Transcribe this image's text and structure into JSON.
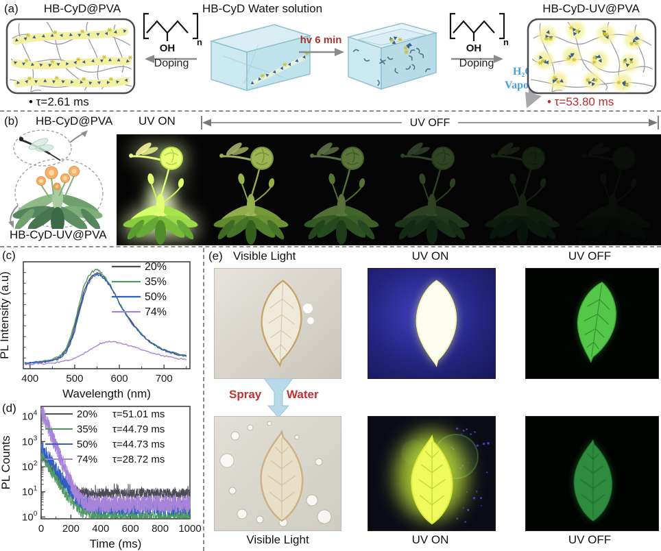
{
  "panel_a": {
    "label": "(a)",
    "film1_title": "HB-CyD@PVA",
    "film1_tau": "• τ=2.61 ms",
    "pva_oh": "OH",
    "pva_n": "n",
    "doping_left": "Doping",
    "solution_title": "HB-CyD Water solution",
    "hv_label": "hv 6 min",
    "doping_right": "Doping",
    "h2o": "H₂O",
    "vapor": "Vapor",
    "film2_title": "HB-CyD-UV@PVA",
    "film2_tau": "• τ=53.80 ms"
  },
  "panel_b": {
    "label": "(b)",
    "top_label": "HB-CyD@PVA",
    "uv_on": "UV ON",
    "uv_off": "UV OFF",
    "bottom_label": "HB-CyD-UV@PVA"
  },
  "panel_c": {
    "label": "(c)"
  },
  "panel_d": {
    "label": "(d)"
  },
  "panel_e": {
    "label": "(e)",
    "top_titles": [
      "Visible Light",
      "UV ON",
      "UV OFF"
    ],
    "spray": "Spray",
    "water": "Water",
    "bottom_labels": [
      "Visible Light",
      "UV ON",
      "UV OFF"
    ]
  },
  "colors": {
    "tau_red": "#bf2a28",
    "hv_red": "#a5342f",
    "h2o_blue": "#4aa0dd",
    "water_box_blue": "#bfe2ec",
    "glow_yellow": "#f5f1a2",
    "uv_background_blue": "#22227a",
    "series_gray": "#4b4b55",
    "series_green": "#4f9a62",
    "series_blue": "#2f5fc6",
    "series_purple": "#a884d8"
  },
  "chart_data": [
    {
      "id": "pl-spectrum",
      "type": "line",
      "title": "",
      "xlabel": "Wavelength (nm)",
      "ylabel": "PL Intensity (a.u)",
      "xlim": [
        385,
        758
      ],
      "ylim": [
        0,
        1.08
      ],
      "xticks": [
        400,
        500,
        600,
        700
      ],
      "xticks_minor": [
        450,
        550,
        650,
        750
      ],
      "grid": false,
      "legend_position": "top-right",
      "x": [
        388,
        400,
        415,
        430,
        445,
        460,
        470,
        480,
        490,
        500,
        510,
        520,
        530,
        540,
        548,
        555,
        562,
        570,
        580,
        590,
        600,
        615,
        630,
        645,
        660,
        675,
        690,
        705,
        720,
        735,
        750
      ],
      "series": [
        {
          "name": "20%",
          "color": "#4b4b55",
          "noise": 0.01,
          "y": [
            0.055,
            0.06,
            0.065,
            0.07,
            0.08,
            0.1,
            0.13,
            0.18,
            0.28,
            0.42,
            0.6,
            0.77,
            0.88,
            0.94,
            0.96,
            0.96,
            0.94,
            0.9,
            0.83,
            0.75,
            0.66,
            0.55,
            0.45,
            0.37,
            0.3,
            0.25,
            0.21,
            0.18,
            0.16,
            0.14,
            0.13
          ]
        },
        {
          "name": "35%",
          "color": "#4f9a62",
          "noise": 0.01,
          "y": [
            0.055,
            0.06,
            0.065,
            0.075,
            0.085,
            0.11,
            0.14,
            0.2,
            0.31,
            0.46,
            0.65,
            0.82,
            0.93,
            0.98,
            1.0,
            0.99,
            0.96,
            0.91,
            0.84,
            0.75,
            0.66,
            0.55,
            0.45,
            0.37,
            0.3,
            0.25,
            0.21,
            0.18,
            0.16,
            0.14,
            0.13
          ]
        },
        {
          "name": "50%",
          "color": "#2f5fc6",
          "noise": 0.01,
          "y": [
            0.055,
            0.06,
            0.065,
            0.07,
            0.078,
            0.095,
            0.12,
            0.16,
            0.25,
            0.38,
            0.56,
            0.73,
            0.86,
            0.93,
            0.95,
            0.95,
            0.93,
            0.89,
            0.83,
            0.75,
            0.66,
            0.55,
            0.45,
            0.37,
            0.3,
            0.25,
            0.21,
            0.18,
            0.16,
            0.14,
            0.13
          ]
        },
        {
          "name": "74%",
          "color": "#a884d8",
          "noise": 0.007,
          "y": [
            0.045,
            0.047,
            0.05,
            0.052,
            0.055,
            0.06,
            0.068,
            0.078,
            0.09,
            0.105,
            0.125,
            0.15,
            0.18,
            0.21,
            0.23,
            0.25,
            0.26,
            0.27,
            0.275,
            0.27,
            0.26,
            0.245,
            0.225,
            0.2,
            0.18,
            0.16,
            0.14,
            0.125,
            0.11,
            0.1,
            0.095
          ]
        }
      ]
    },
    {
      "id": "pl-decay",
      "type": "line-log",
      "title": "",
      "xlabel": "Time (ms)",
      "ylabel": "PL Counts",
      "xlim": [
        0,
        1000
      ],
      "ylim": [
        0.85,
        25000
      ],
      "xticks": [
        0,
        200,
        400,
        600,
        800,
        1000
      ],
      "xticks_minor": [
        100,
        300,
        500,
        700,
        900
      ],
      "yticks_pow": [
        0,
        1,
        2,
        3,
        4
      ],
      "grid": false,
      "legend_position": "top-inside",
      "series": [
        {
          "name": "20%",
          "tau_label": "τ=51.01 ms",
          "tau_ms": 51.01,
          "color": "#4b4b55",
          "peak": 290,
          "floor": 8.5,
          "noise": 0.42,
          "samples": 850,
          "spikes": true
        },
        {
          "name": "35%",
          "tau_label": "τ=44.79 ms",
          "tau_ms": 44.79,
          "color": "#4f9a62",
          "peak": 330,
          "floor": 1.05,
          "noise": 0.55,
          "samples": 850,
          "spikes": false
        },
        {
          "name": "50%",
          "tau_label": "τ=44.73 ms",
          "tau_ms": 44.73,
          "color": "#2f5fc6",
          "peak": 720,
          "floor": 2.3,
          "noise": 0.6,
          "samples": 900,
          "spikes": false
        },
        {
          "name": "74%",
          "tau_label": "τ=28.72 ms",
          "tau_ms": 28.72,
          "color": "#a884d8",
          "peak": 21000,
          "floor": 3.2,
          "noise": 0.7,
          "samples": 1500,
          "spikes": false
        }
      ]
    }
  ]
}
